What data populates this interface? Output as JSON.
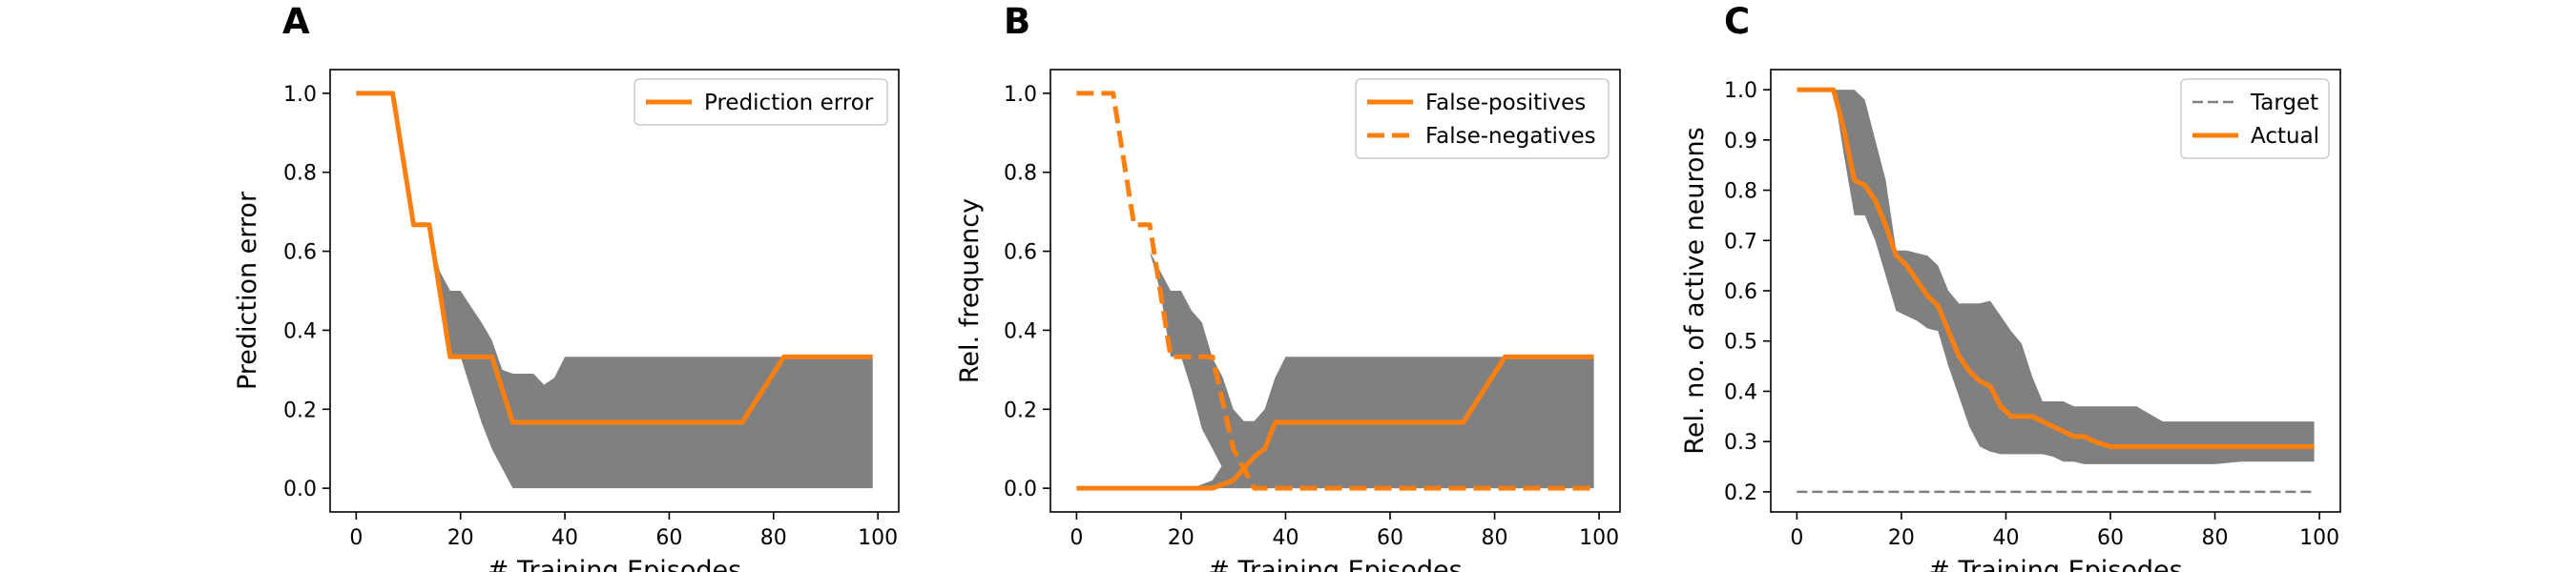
{
  "figure": {
    "background": "#ffffff"
  },
  "chart_data": [
    {
      "type": "line",
      "panel_label": "A",
      "xlabel": "# Training Episodes",
      "ylabel": "Prediction error",
      "xlim": [
        -5,
        104
      ],
      "ylim": [
        -0.06,
        1.06
      ],
      "xticks": [
        0,
        20,
        40,
        60,
        80,
        100
      ],
      "xtick_labels": [
        "0",
        "20",
        "40",
        "60",
        "80",
        "100"
      ],
      "yticks": [
        0.0,
        0.2,
        0.4,
        0.6,
        0.8,
        1.0
      ],
      "ytick_labels": [
        "0.0",
        "0.2",
        "0.4",
        "0.6",
        "0.8",
        "1.0"
      ],
      "grid": false,
      "legend_position": "upper right",
      "bands": [
        {
          "x": [
            0,
            7,
            11,
            14,
            16,
            18,
            20,
            22,
            24,
            26,
            28,
            30,
            32,
            34,
            36,
            38,
            40,
            60,
            80,
            99
          ],
          "lower": [
            1.0,
            1.0,
            0.667,
            0.667,
            0.5,
            0.333,
            0.333,
            0.25,
            0.167,
            0.1,
            0.05,
            0.0,
            0.0,
            0.0,
            0.0,
            0.0,
            0.0,
            0.0,
            0.0,
            0.0
          ],
          "upper": [
            1.0,
            1.0,
            0.667,
            0.667,
            0.55,
            0.5,
            0.5,
            0.46,
            0.42,
            0.375,
            0.3,
            0.29,
            0.29,
            0.29,
            0.262,
            0.28,
            0.333,
            0.333,
            0.333,
            0.333
          ],
          "color": "#808080"
        }
      ],
      "series": [
        {
          "name": "Prediction error",
          "color": "#ff7f0e",
          "style": "solid",
          "x": [
            0,
            7,
            11,
            14,
            18,
            26,
            30,
            74,
            82,
            99
          ],
          "y": [
            1.0,
            1.0,
            0.667,
            0.667,
            0.333,
            0.333,
            0.167,
            0.167,
            0.333,
            0.333
          ]
        }
      ]
    },
    {
      "type": "line",
      "panel_label": "B",
      "xlabel": "# Training Episodes",
      "ylabel": "Rel. frequency",
      "xlim": [
        -5,
        104
      ],
      "ylim": [
        -0.06,
        1.06
      ],
      "xticks": [
        0,
        20,
        40,
        60,
        80,
        100
      ],
      "xtick_labels": [
        "0",
        "20",
        "40",
        "60",
        "80",
        "100"
      ],
      "yticks": [
        0.0,
        0.2,
        0.4,
        0.6,
        0.8,
        1.0
      ],
      "ytick_labels": [
        "0.0",
        "0.2",
        "0.4",
        "0.6",
        "0.8",
        "1.0"
      ],
      "grid": false,
      "legend_position": "upper right",
      "bands": [
        {
          "x": [
            14,
            16,
            18,
            20,
            22,
            24,
            26,
            28,
            30,
            32,
            34,
            36,
            38,
            40,
            60,
            80,
            99
          ],
          "lower": [
            0.6,
            0.5,
            0.333,
            0.333,
            0.25,
            0.15,
            0.1,
            0.05,
            0.0,
            0.0,
            0.0,
            0.0,
            0.0,
            0.0,
            0.0,
            0.0,
            0.0
          ],
          "upper": [
            0.6,
            0.55,
            0.5,
            0.5,
            0.45,
            0.42,
            0.33,
            0.28,
            0.2,
            0.17,
            0.17,
            0.2,
            0.28,
            0.333,
            0.333,
            0.333,
            0.333
          ],
          "color": "#808080"
        },
        {
          "x": [
            0,
            22,
            26,
            28,
            30,
            32,
            34,
            99
          ],
          "lower": [
            0,
            0,
            0,
            0,
            0,
            0,
            0,
            0
          ],
          "upper": [
            0,
            0,
            0.02,
            0.06,
            0.08,
            0.12,
            0.1,
            0.0
          ],
          "color": "#808080"
        }
      ],
      "series": [
        {
          "name": "False-positives",
          "color": "#ff7f0e",
          "style": "solid",
          "x": [
            0,
            26,
            30,
            32,
            34,
            36,
            38,
            74,
            82,
            99
          ],
          "y": [
            0.0,
            0.0,
            0.02,
            0.05,
            0.08,
            0.1,
            0.167,
            0.167,
            0.333,
            0.333
          ]
        },
        {
          "name": "False-negatives",
          "color": "#ff7f0e",
          "style": "dashed",
          "x": [
            0,
            7,
            11,
            14,
            18,
            26,
            30,
            34,
            99
          ],
          "y": [
            1.0,
            1.0,
            0.667,
            0.667,
            0.333,
            0.333,
            0.1,
            0.0,
            0.0
          ]
        }
      ]
    },
    {
      "type": "line",
      "panel_label": "C",
      "xlabel": "# Training Episodes",
      "ylabel": "Rel. no. of active neurons",
      "xlim": [
        -5,
        104
      ],
      "ylim": [
        0.16,
        1.04
      ],
      "xticks": [
        0,
        20,
        40,
        60,
        80,
        100
      ],
      "xtick_labels": [
        "0",
        "20",
        "40",
        "60",
        "80",
        "100"
      ],
      "yticks": [
        0.2,
        0.3,
        0.4,
        0.5,
        0.6,
        0.7,
        0.8,
        0.9,
        1.0
      ],
      "ytick_labels": [
        "0.2",
        "0.3",
        "0.4",
        "0.5",
        "0.6",
        "0.7",
        "0.8",
        "0.9",
        "1.0"
      ],
      "grid": false,
      "legend_position": "upper right",
      "bands": [
        {
          "x": [
            0,
            7,
            9,
            11,
            13,
            15,
            17,
            19,
            21,
            23,
            25,
            27,
            29,
            31,
            33,
            35,
            37,
            39,
            41,
            43,
            45,
            47,
            49,
            51,
            53,
            55,
            60,
            65,
            70,
            75,
            80,
            85,
            90,
            99
          ],
          "lower": [
            1.0,
            1.0,
            0.87,
            0.75,
            0.75,
            0.7,
            0.63,
            0.56,
            0.55,
            0.54,
            0.525,
            0.52,
            0.45,
            0.39,
            0.33,
            0.29,
            0.28,
            0.275,
            0.275,
            0.275,
            0.275,
            0.275,
            0.27,
            0.26,
            0.26,
            0.255,
            0.255,
            0.255,
            0.255,
            0.255,
            0.255,
            0.26,
            0.26,
            0.26
          ],
          "upper": [
            1.0,
            1.0,
            1.0,
            1.0,
            0.98,
            0.9,
            0.82,
            0.68,
            0.68,
            0.675,
            0.67,
            0.65,
            0.6,
            0.575,
            0.575,
            0.575,
            0.58,
            0.55,
            0.52,
            0.495,
            0.43,
            0.38,
            0.38,
            0.38,
            0.37,
            0.37,
            0.37,
            0.37,
            0.34,
            0.34,
            0.34,
            0.34,
            0.34,
            0.34
          ],
          "color": "#808080"
        }
      ],
      "series": [
        {
          "name": "Target",
          "color": "#808080",
          "style": "dashed",
          "x": [
            0,
            99
          ],
          "y": [
            0.2,
            0.2
          ]
        },
        {
          "name": "Actual",
          "color": "#ff7f0e",
          "style": "solid",
          "x": [
            0,
            7,
            9,
            11,
            13,
            15,
            17,
            19,
            21,
            23,
            25,
            27,
            29,
            31,
            33,
            35,
            37,
            39,
            41,
            43,
            45,
            47,
            49,
            51,
            53,
            55,
            57,
            60,
            99
          ],
          "y": [
            1.0,
            1.0,
            0.92,
            0.82,
            0.81,
            0.78,
            0.73,
            0.67,
            0.65,
            0.62,
            0.59,
            0.57,
            0.52,
            0.47,
            0.44,
            0.42,
            0.41,
            0.37,
            0.35,
            0.35,
            0.35,
            0.34,
            0.33,
            0.32,
            0.31,
            0.31,
            0.3,
            0.29,
            0.29
          ]
        }
      ]
    }
  ]
}
